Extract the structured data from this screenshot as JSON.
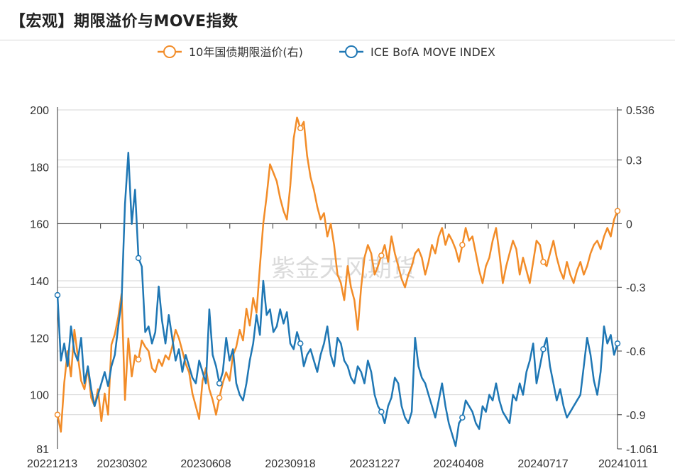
{
  "title": "【宏观】期限溢价与MOVE指数",
  "watermark": "紫金天风期货",
  "chart_data": {
    "type": "line",
    "x_tick_labels": [
      "20221213",
      "20230302",
      "20230608",
      "20230918",
      "20231227",
      "20240408",
      "20240717",
      "20241011"
    ],
    "y_left": {
      "ticks": [
        81,
        100,
        120,
        140,
        160,
        180,
        200
      ],
      "range": [
        81,
        200
      ]
    },
    "y_right": {
      "ticks": [
        -1.061,
        -0.9,
        -0.6,
        -0.3,
        0,
        0.3,
        0.536
      ],
      "range": [
        -1.061,
        0.536
      ]
    },
    "series": [
      {
        "name": "10年国债期限溢价(右)",
        "axis": "right",
        "color": "#F28C28",
        "values": [
          -0.9,
          -0.98,
          -0.75,
          -0.6,
          -0.72,
          -0.5,
          -0.62,
          -0.74,
          -0.78,
          -0.68,
          -0.82,
          -0.86,
          -0.78,
          -0.93,
          -0.8,
          -0.9,
          -0.57,
          -0.52,
          -0.44,
          -0.33,
          -0.83,
          -0.54,
          -0.72,
          -0.62,
          -0.64,
          -0.55,
          -0.58,
          -0.6,
          -0.68,
          -0.7,
          -0.64,
          -0.67,
          -0.62,
          -0.64,
          -0.58,
          -0.5,
          -0.54,
          -0.6,
          -0.66,
          -0.7,
          -0.8,
          -0.86,
          -0.92,
          -0.74,
          -0.68,
          -0.78,
          -0.83,
          -0.9,
          -0.82,
          -0.75,
          -0.7,
          -0.74,
          -0.62,
          -0.58,
          -0.5,
          -0.55,
          -0.4,
          -0.48,
          -0.35,
          -0.42,
          -0.2,
          0.0,
          0.13,
          0.28,
          0.24,
          0.2,
          0.12,
          0.06,
          0.02,
          0.18,
          0.4,
          0.5,
          0.45,
          0.48,
          0.32,
          0.22,
          0.16,
          0.08,
          0.02,
          0.05,
          -0.06,
          0.0,
          -0.1,
          -0.24,
          -0.28,
          -0.36,
          -0.2,
          -0.3,
          -0.36,
          -0.5,
          -0.3,
          -0.16,
          -0.1,
          -0.14,
          -0.24,
          -0.2,
          -0.15,
          -0.1,
          -0.18,
          -0.06,
          -0.14,
          -0.2,
          -0.26,
          -0.3,
          -0.24,
          -0.2,
          -0.14,
          -0.12,
          -0.16,
          -0.24,
          -0.18,
          -0.1,
          -0.14,
          -0.06,
          -0.02,
          -0.1,
          -0.05,
          -0.08,
          -0.12,
          -0.18,
          -0.1,
          -0.02,
          -0.08,
          -0.06,
          -0.14,
          -0.22,
          -0.28,
          -0.2,
          -0.16,
          -0.08,
          -0.02,
          -0.14,
          -0.28,
          -0.2,
          -0.14,
          -0.08,
          -0.12,
          -0.24,
          -0.16,
          -0.22,
          -0.28,
          -0.18,
          -0.08,
          -0.1,
          -0.18,
          -0.2,
          -0.14,
          -0.08,
          -0.16,
          -0.22,
          -0.26,
          -0.18,
          -0.24,
          -0.28,
          -0.22,
          -0.18,
          -0.24,
          -0.2,
          -0.14,
          -0.1,
          -0.08,
          -0.12,
          -0.06,
          -0.02,
          -0.06,
          0.02,
          0.06
        ]
      },
      {
        "name": "ICE BofA MOVE INDEX",
        "axis": "left",
        "color": "#1F77B4",
        "values": [
          135,
          112,
          118,
          110,
          124,
          115,
          112,
          120,
          104,
          110,
          102,
          96,
          100,
          104,
          108,
          103,
          110,
          114,
          124,
          133,
          167,
          185,
          160,
          172,
          148,
          145,
          122,
          124,
          118,
          122,
          138,
          126,
          118,
          128,
          120,
          112,
          116,
          108,
          114,
          110,
          106,
          104,
          112,
          108,
          104,
          130,
          114,
          110,
          104,
          108,
          120,
          112,
          116,
          104,
          100,
          98,
          104,
          112,
          118,
          128,
          121,
          140,
          128,
          130,
          122,
          124,
          130,
          125,
          129,
          118,
          116,
          122,
          118,
          110,
          114,
          116,
          112,
          108,
          114,
          118,
          124,
          114,
          110,
          120,
          118,
          112,
          110,
          106,
          104,
          110,
          108,
          104,
          112,
          108,
          100,
          96,
          94,
          90,
          96,
          99,
          106,
          104,
          96,
          92,
          90,
          94,
          120,
          110,
          106,
          104,
          100,
          96,
          92,
          98,
          104,
          96,
          90,
          86,
          82,
          90,
          92,
          98,
          96,
          94,
          90,
          88,
          96,
          94,
          100,
          98,
          104,
          98,
          94,
          92,
          90,
          100,
          98,
          104,
          100,
          108,
          112,
          118,
          104,
          110,
          116,
          120,
          110,
          104,
          98,
          102,
          96,
          92,
          94,
          96,
          98,
          100,
          110,
          120,
          114,
          105,
          100,
          108,
          124,
          118,
          121,
          114,
          118
        ]
      }
    ],
    "legend": {
      "placement": "top-center"
    },
    "grid": true
  }
}
